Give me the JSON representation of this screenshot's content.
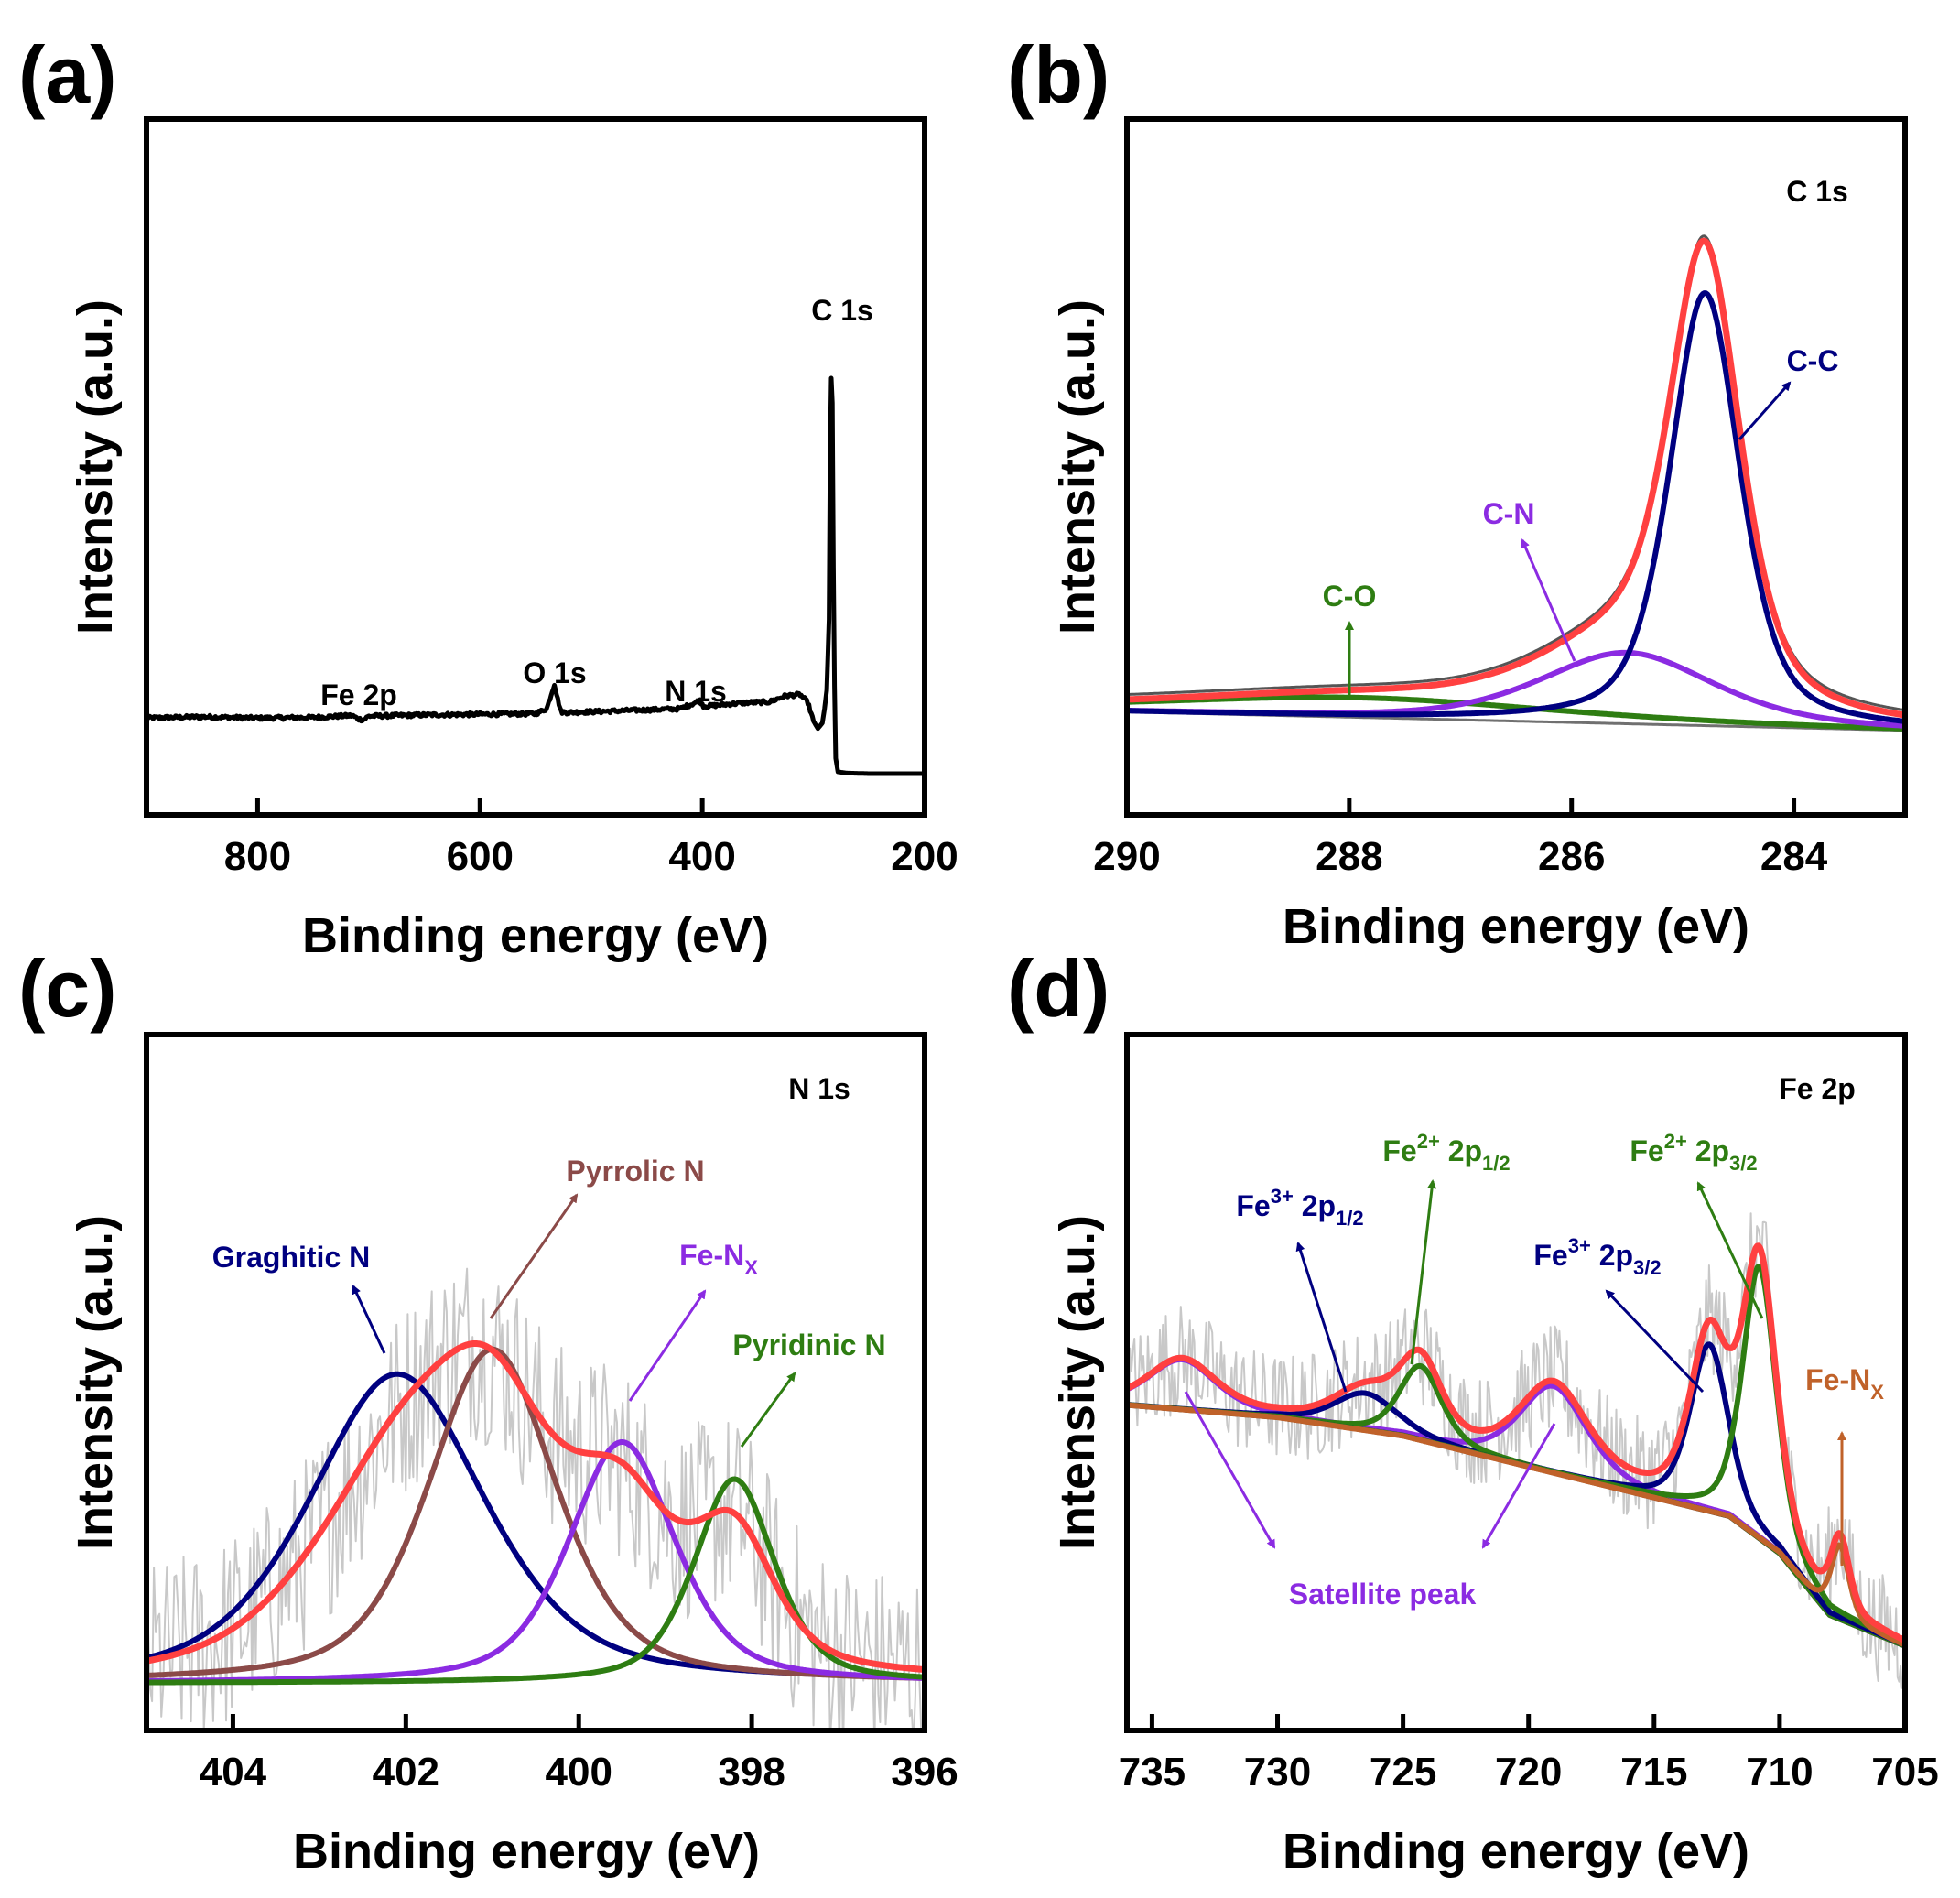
{
  "figure": {
    "panels": [
      {
        "id": "a",
        "label": "(a)"
      },
      {
        "id": "b",
        "label": "(b)"
      },
      {
        "id": "c",
        "label": "(c)"
      },
      {
        "id": "d",
        "label": "(d)"
      }
    ]
  },
  "chart_data": [
    {
      "panel": "(a)",
      "type": "line",
      "title": "",
      "xlabel": "Binding energy (eV)",
      "ylabel": "Intensity (a.u.)",
      "xlim": [
        900,
        200
      ],
      "ylim": [
        0,
        100
      ],
      "x_reversed": true,
      "xticks": [
        800,
        600,
        400,
        200
      ],
      "xtick_labels": [
        "800",
        "600",
        "400",
        "200"
      ],
      "series": [
        {
          "name": "survey",
          "color": "#000000",
          "x": [
            900,
            850,
            800,
            750,
            715,
            710,
            705,
            700,
            650,
            600,
            550,
            540,
            533,
            530,
            527,
            520,
            470,
            420,
            402,
            399,
            396,
            380,
            360,
            340,
            325,
            312,
            305,
            300,
            296,
            292,
            290,
            288,
            286,
            284.5,
            283,
            281.5,
            280,
            278,
            270,
            250,
            220,
            200
          ],
          "y": [
            9,
            9.2,
            9,
            9.1,
            9.4,
            8.9,
            8.7,
            9.3,
            9.5,
            9.6,
            9.7,
            10.5,
            14.5,
            12,
            10,
            9.9,
            10.2,
            10.5,
            11.8,
            11,
            10.9,
            11.2,
            11.5,
            11.6,
            12.6,
            12.8,
            11.5,
            8.5,
            7.3,
            8.2,
            10.5,
            13.5,
            25,
            66,
            60,
            20,
            2.5,
            0.3,
            0.1,
            0,
            0,
            0
          ]
        }
      ],
      "annotations": [
        {
          "text": "C 1s",
          "x": 282,
          "y": 70
        },
        {
          "text": "Fe 2p",
          "x": 712,
          "y": 14
        },
        {
          "text": "O 1s",
          "x": 533,
          "y": 18
        },
        {
          "text": "N 1s",
          "x": 400,
          "y": 15
        }
      ]
    },
    {
      "panel": "(b)",
      "type": "line",
      "title": "C 1s",
      "xlabel": "Binding energy (eV)",
      "ylabel": "Intensity (a.u.)",
      "xlim": [
        290,
        283
      ],
      "ylim": [
        0,
        100
      ],
      "x_reversed": true,
      "xticks": [
        290,
        288,
        286,
        284
      ],
      "xtick_labels": [
        "290",
        "288",
        "286",
        "284"
      ],
      "baseline": {
        "x": [
          290,
          283
        ],
        "y": [
          10,
          7
        ]
      },
      "series": [
        {
          "name": "Envelope",
          "color": "#ff4040",
          "center": 284.8,
          "amplitude": 79,
          "fwhm": 0.75
        },
        {
          "name": "C-C",
          "color": "#000080",
          "center": 284.8,
          "amplitude": 70,
          "fwhm": 0.75
        },
        {
          "name": "C-N",
          "color": "#8b2be2",
          "center": 285.5,
          "amplitude": 11.5,
          "fwhm": 1.85
        },
        {
          "name": "C-O",
          "color": "#2e7d12",
          "center": 287.9,
          "amplitude": 3.2,
          "fwhm": 4.2
        }
      ],
      "annotations": [
        {
          "text": "C-C",
          "color": "#000080"
        },
        {
          "text": "C-N",
          "color": "#8b2be2"
        },
        {
          "text": "C-O",
          "color": "#2e7d12"
        }
      ]
    },
    {
      "panel": "(c)",
      "type": "line",
      "title": "N 1s",
      "xlabel": "Binding energy (eV)",
      "ylabel": "Intensity (a.u.)",
      "xlim": [
        405,
        396
      ],
      "ylim": [
        0,
        100
      ],
      "x_reversed": true,
      "xticks": [
        404,
        402,
        400,
        398,
        396
      ],
      "xtick_labels": [
        "404",
        "402",
        "400",
        "398",
        "396"
      ],
      "baseline": {
        "x": [
          405,
          396
        ],
        "y": [
          1,
          1
        ]
      },
      "raw_data": {
        "name": "raw",
        "color": "#c8c8c8",
        "noise": 16
      },
      "series": [
        {
          "name": "Envelope",
          "color": "#ff4040",
          "center": 401.1,
          "amplitude": 72,
          "fwhm": 2.2
        },
        {
          "name": "Graghitic N",
          "color": "#000080",
          "center": 402.1,
          "amplitude": 50,
          "fwhm": 2.4
        },
        {
          "name": "Pyrrolic N",
          "color": "#8b4a48",
          "center": 401.0,
          "amplitude": 54,
          "fwhm": 1.75
        },
        {
          "name": "Fe-NX",
          "color": "#8b2be2",
          "center": 399.5,
          "amplitude": 39,
          "fwhm": 1.45
        },
        {
          "name": "Pyridinic N",
          "color": "#2e7d12",
          "center": 398.2,
          "amplitude": 33,
          "fwhm": 1.1
        }
      ],
      "annotations": [
        {
          "text": "Graghitic N",
          "color": "#000080"
        },
        {
          "text": "Pyrrolic N",
          "color": "#8b4a48"
        },
        {
          "text": "Fe-N",
          "sub": "X",
          "color": "#8b2be2"
        },
        {
          "text": "Pyridinic N",
          "color": "#2e7d12"
        }
      ]
    },
    {
      "panel": "(d)",
      "type": "line",
      "title": "Fe 2p",
      "xlabel": "Binding energy (eV)",
      "ylabel": "Intensity (a.u.)",
      "xlim": [
        736,
        705
      ],
      "ylim": [
        0,
        100
      ],
      "x_reversed": true,
      "xticks": [
        735,
        730,
        725,
        720,
        715,
        710,
        705
      ],
      "xtick_labels": [
        "735",
        "730",
        "725",
        "720",
        "715",
        "710",
        "705"
      ],
      "background": {
        "x": [
          736,
          730,
          725,
          720,
          715,
          712,
          710,
          708,
          705
        ],
        "y": [
          46,
          44,
          41,
          36,
          31,
          28,
          22,
          12,
          7
        ]
      },
      "raw_data": {
        "name": "raw",
        "color": "#c8c8c8",
        "noise": 9
      },
      "series": [
        {
          "name": "Envelope",
          "color": "#ff4040"
        },
        {
          "name": "Fe3+ 2p1/2",
          "color": "#000080",
          "center": 726.5,
          "amplitude": 6,
          "fwhm": 3.0
        },
        {
          "name": "Fe2+ 2p1/2",
          "color": "#2e7d12",
          "center": 724.3,
          "amplitude": 12,
          "fwhm": 2.0
        },
        {
          "name": "Fe3+ 2p3/2",
          "color": "#000080",
          "center": 712.8,
          "amplitude": 27,
          "fwhm": 1.8
        },
        {
          "name": "Fe2+ 2p3/2",
          "color": "#2e7d12",
          "center": 710.8,
          "amplitude": 44,
          "fwhm": 1.6
        },
        {
          "name": "Satellite peak",
          "color": "#8b2be2",
          "centers": [
            733.8,
            719.0
          ],
          "amplitudes": [
            8,
            14
          ],
          "fwhm": 3.2
        },
        {
          "name": "Fe-NX",
          "color": "#c0622a",
          "center": 707.6,
          "amplitude": 12,
          "fwhm": 0.9
        }
      ],
      "annotations": [
        {
          "text": "Fe",
          "sup": "3+",
          "mid": " 2p",
          "sub": "1/2",
          "color": "#000080"
        },
        {
          "text": "Fe",
          "sup": "2+",
          "mid": " 2p",
          "sub": "1/2",
          "color": "#2e7d12"
        },
        {
          "text": "Fe",
          "sup": "3+",
          "mid": " 2p",
          "sub": "3/2",
          "color": "#000080"
        },
        {
          "text": "Fe",
          "sup": "2+",
          "mid": " 2p",
          "sub": "3/2",
          "color": "#2e7d12"
        },
        {
          "text": "Fe-N",
          "sub": "X",
          "color": "#c0622a"
        },
        {
          "text": "Satellite peak",
          "color": "#8b2be2"
        }
      ]
    }
  ]
}
